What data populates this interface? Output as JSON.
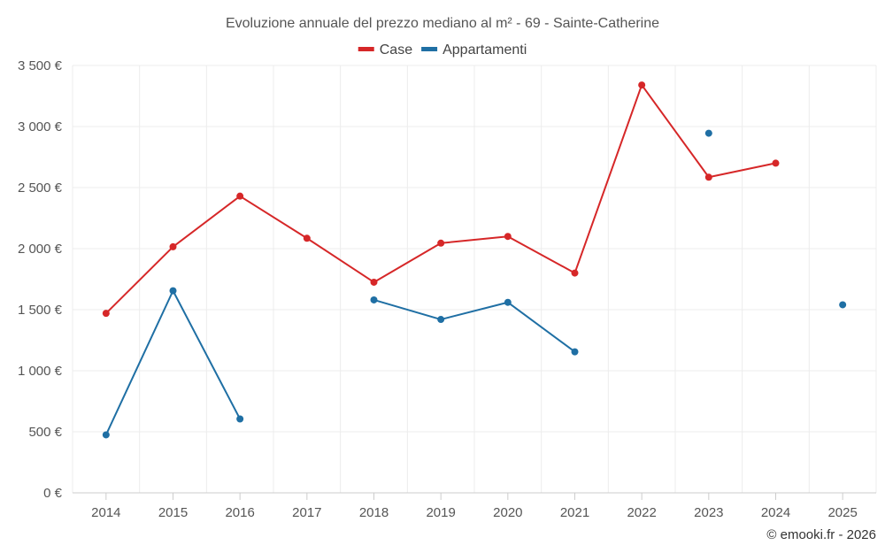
{
  "chart_data": {
    "type": "line",
    "title": "Evoluzione annuale del prezzo mediano al m² - 69 - Sainte-Catherine",
    "categories": [
      "2014",
      "2015",
      "2016",
      "2017",
      "2018",
      "2019",
      "2020",
      "2021",
      "2022",
      "2023",
      "2024",
      "2025"
    ],
    "series": [
      {
        "name": "Case",
        "color": "#d62728",
        "values": [
          1470,
          2015,
          2430,
          2085,
          1725,
          2045,
          2100,
          1800,
          3340,
          2585,
          2700,
          null
        ]
      },
      {
        "name": "Appartamenti",
        "color": "#1f6fa4",
        "values": [
          475,
          1655,
          605,
          null,
          1580,
          1420,
          1560,
          1155,
          null,
          2945,
          null,
          1540
        ]
      }
    ],
    "ylim": [
      0,
      3500
    ],
    "yticks": [
      0,
      500,
      1000,
      1500,
      2000,
      2500,
      3000,
      3500
    ],
    "ytick_labels": [
      "0 €",
      "500 €",
      "1 000 €",
      "1 500 €",
      "2 000 €",
      "2 500 €",
      "3 000 €",
      "3 500 €"
    ],
    "xlabel": "",
    "ylabel": "",
    "grid": true,
    "legend_position": "top-center",
    "credit": "© emooki.fr - 2026"
  }
}
